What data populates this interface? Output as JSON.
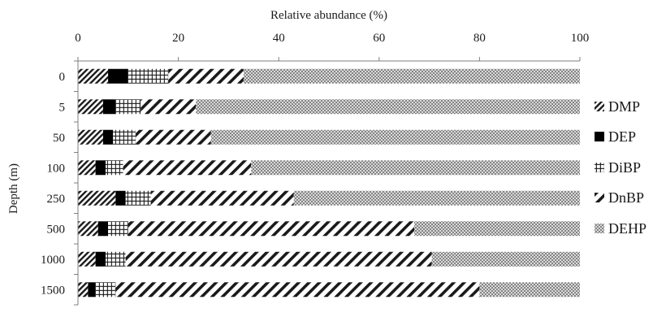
{
  "chart_data": {
    "type": "bar",
    "orientation": "horizontal",
    "stacked": true,
    "xlabel": "Relative abundance (%)",
    "ylabel": "Depth (m)",
    "xlim": [
      0,
      100
    ],
    "xticks": [
      "0",
      "20",
      "40",
      "60",
      "80",
      "100"
    ],
    "grid": false,
    "legend_position": "right",
    "categories": [
      "0",
      "5",
      "50",
      "100",
      "250",
      "500",
      "1000",
      "1500"
    ],
    "series": [
      {
        "name": "DMP",
        "values": [
          6,
          5,
          5,
          3.5,
          7.5,
          4,
          3.5,
          2
        ]
      },
      {
        "name": "DEP",
        "values": [
          4,
          2.5,
          2,
          2,
          2,
          2,
          2,
          1.5
        ]
      },
      {
        "name": "DiBP",
        "values": [
          8,
          5,
          4.5,
          3.5,
          5,
          4,
          4,
          4
        ]
      },
      {
        "name": "DnBP",
        "values": [
          15,
          11,
          15,
          25.5,
          28.5,
          57,
          61,
          72.5
        ]
      },
      {
        "name": "DEHP",
        "values": [
          67,
          76.5,
          73.5,
          65.5,
          57,
          33,
          29.5,
          20
        ]
      }
    ]
  }
}
